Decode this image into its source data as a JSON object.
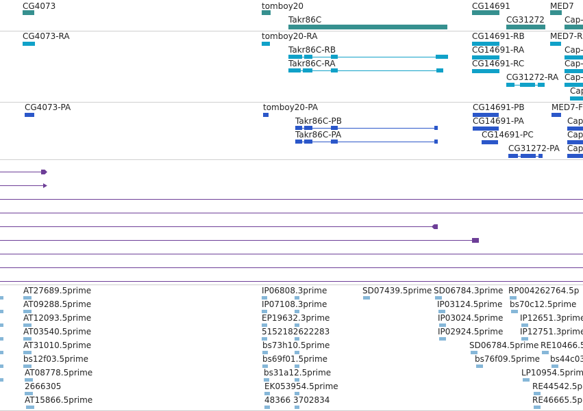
{
  "colors": {
    "gene": "#36908f",
    "transcript": "#10a1c8",
    "protein": "#2b57c9",
    "alignment": "#6d3e97",
    "est": "#86b7d8",
    "separator": "#cfcfcf"
  },
  "tracks": {
    "genes": {
      "labels": {
        "cg4073": "CG4073",
        "tomboy20": "tomboy20",
        "takr86c": "Takr86C",
        "cg14691": "CG14691",
        "cg31272": "CG31272",
        "med7": "MED7",
        "cap": "Cap-"
      }
    },
    "transcripts": {
      "labels": {
        "cg4073_ra": "CG4073-RA",
        "tomboy20_ra": "tomboy20-RA",
        "takr86c_rb": "Takr86C-RB",
        "takr86c_ra": "Takr86C-RA",
        "cg14691_rb": "CG14691-RB",
        "cg14691_ra": "CG14691-RA",
        "cg14691_rc": "CG14691-RC",
        "cg31272_ra": "CG31272-RA",
        "med7_r": "MED7-R",
        "cap1": "Cap-",
        "cap2": "Cap-",
        "cap3": "Cap-",
        "cap4": "Cap"
      }
    },
    "proteins": {
      "labels": {
        "cg4073_pa": "CG4073-PA",
        "tomboy20_pa": "tomboy20-PA",
        "takr86c_pb": "Takr86C-PB",
        "takr86c_pa": "Takr86C-PA",
        "cg14691_pb": "CG14691-PB",
        "cg14691_pa": "CG14691-PA",
        "cg14691_pc": "CG14691-PC",
        "cg31272_pa": "CG31272-PA",
        "med7_p": "MED7-F",
        "cap1": "Cap",
        "cap2": "Cap",
        "cap3": "Cap",
        "cap4": "Cap"
      }
    },
    "ests": {
      "col1": [
        "AT27689.5prime",
        "AT09288.5prime",
        "AT12093.5prime",
        "AT03540.5prime",
        "AT31010.5prime",
        "bs12f03.5prime",
        "AT08778.5prime",
        "2666305",
        "AT15866.5prime"
      ],
      "col2": [
        "IP06808.3prime",
        "IP07108.3prime",
        "EP19632.3prime",
        "5152182622283",
        "bs73h10.5prime",
        "bs69f01.5prime",
        "bs31a12.5prime",
        "EK053954.5prime",
        "48366 3702834"
      ],
      "sd07439": "SD07439.5prime",
      "col3": [
        "SD06784.3prime",
        "IP03124.5prime",
        "IP03024.5prime",
        "IP02924.5prime",
        "SD06784.5prime",
        "bs76f09.5prime"
      ],
      "col4": [
        "RP004262764.5p",
        "bs70c12.5prime",
        "IP12651.3prime",
        "IP12751.3prime",
        "RE10466.5",
        "bs44c03",
        "LP10954.5prim",
        "RE44542.5p",
        "RE46665.5p"
      ]
    }
  }
}
